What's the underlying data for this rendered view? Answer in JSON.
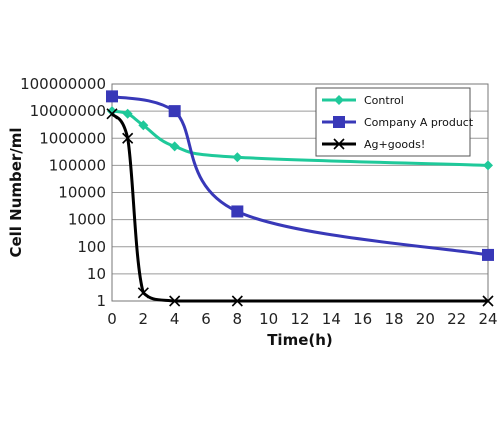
{
  "chart_data": {
    "type": "line",
    "xlabel": "Time(h)",
    "ylabel": "Cell Number/ml",
    "yscale": "log",
    "xlim": [
      0,
      24
    ],
    "ylim": [
      1,
      100000000
    ],
    "xticks": [
      "0",
      "2",
      "4",
      "6",
      "8",
      "10",
      "12",
      "14",
      "16",
      "18",
      "20",
      "22",
      "24"
    ],
    "yticks": [
      "1",
      "10",
      "100",
      "1000",
      "10000",
      "100000",
      "1000000",
      "10000000",
      "100000000"
    ],
    "grid": "horizontal",
    "legend_position": "top-right",
    "series": [
      {
        "name": "Control",
        "color": "#1fc99a",
        "marker": "diamond",
        "x": [
          0,
          1,
          2,
          4,
          8,
          24
        ],
        "y": [
          10000000,
          8000000,
          3000000,
          500000,
          200000,
          100000
        ]
      },
      {
        "name": "Company A product",
        "color": "#3838b8",
        "marker": "square",
        "x": [
          0,
          4,
          8,
          24
        ],
        "y": [
          35000000,
          10000000,
          2000,
          50
        ]
      },
      {
        "name": "Ag+goods!",
        "color": "#000000",
        "marker": "x",
        "x": [
          0,
          1,
          2,
          4,
          8,
          24
        ],
        "y": [
          8000000,
          1000000,
          2,
          1,
          1,
          1
        ]
      }
    ]
  }
}
